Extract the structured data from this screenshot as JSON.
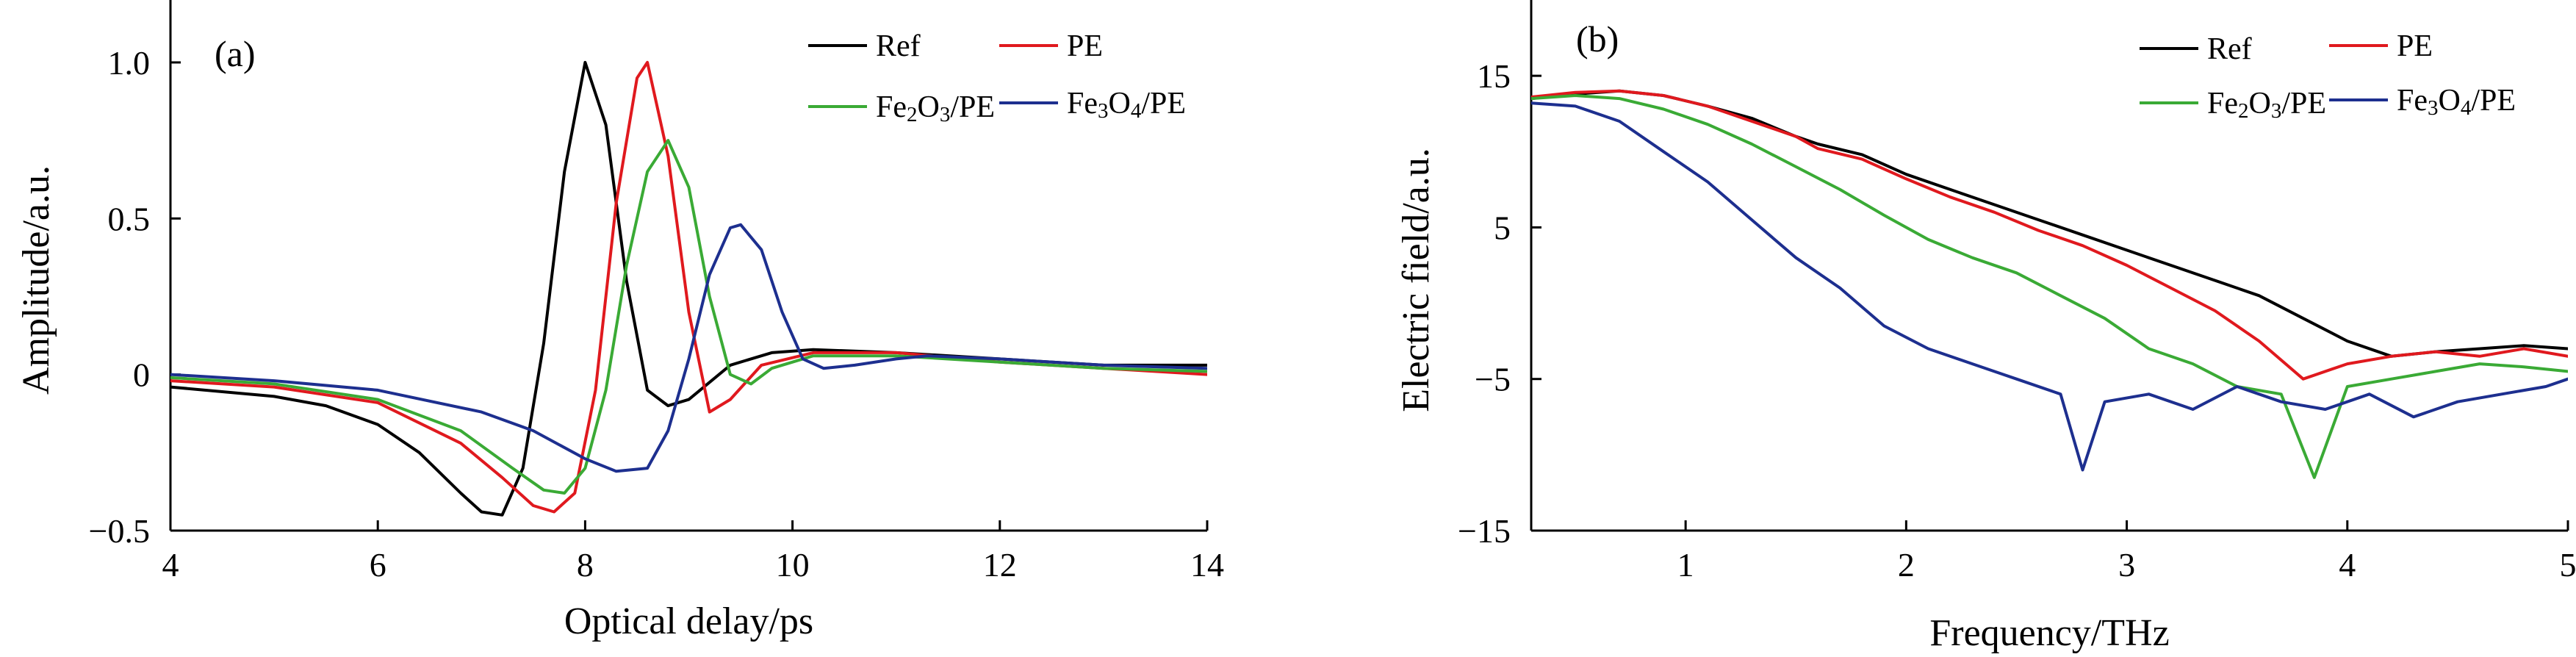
{
  "chart_data": [
    {
      "type": "line",
      "panel_label": "(a)",
      "xlabel": "Optical delay/ps",
      "ylabel": "Amplitude/a.u.",
      "xlim": [
        4,
        14
      ],
      "ylim": [
        -0.5,
        1.2
      ],
      "xticks": [
        4,
        6,
        8,
        10,
        12,
        14
      ],
      "xtick_labels": [
        "4",
        "6",
        "8",
        "10",
        "12",
        "14"
      ],
      "yticks": [
        -0.5,
        0,
        0.5,
        1.0
      ],
      "ytick_labels": [
        "−0.5",
        "0",
        "0.5",
        "1.0"
      ],
      "grid": false,
      "legend_position": "top-right",
      "series": [
        {
          "name": "Ref",
          "color": "#000000",
          "x": [
            4.0,
            5.0,
            5.5,
            6.0,
            6.4,
            6.8,
            7.0,
            7.2,
            7.4,
            7.6,
            7.8,
            8.0,
            8.2,
            8.4,
            8.6,
            8.8,
            9.0,
            9.4,
            9.8,
            10.2,
            11.0,
            12.0,
            13.0,
            14.0
          ],
          "y": [
            -0.04,
            -0.07,
            -0.1,
            -0.16,
            -0.25,
            -0.38,
            -0.44,
            -0.45,
            -0.3,
            0.1,
            0.65,
            1.0,
            0.8,
            0.3,
            -0.05,
            -0.1,
            -0.08,
            0.03,
            0.07,
            0.08,
            0.07,
            0.05,
            0.03,
            0.03
          ]
        },
        {
          "name": "PE",
          "color": "#e0191e",
          "x": [
            4.0,
            5.0,
            6.0,
            6.8,
            7.2,
            7.5,
            7.7,
            7.9,
            8.1,
            8.3,
            8.5,
            8.6,
            8.8,
            9.0,
            9.2,
            9.4,
            9.7,
            10.2,
            11.0,
            12.0,
            13.0,
            14.0
          ],
          "y": [
            -0.02,
            -0.04,
            -0.09,
            -0.22,
            -0.33,
            -0.42,
            -0.44,
            -0.38,
            -0.05,
            0.55,
            0.95,
            1.0,
            0.7,
            0.2,
            -0.12,
            -0.08,
            0.03,
            0.07,
            0.07,
            0.04,
            0.02,
            0.0
          ]
        },
        {
          "name": "Fe2O3/PE",
          "color": "#3aaa35",
          "x": [
            4.0,
            5.0,
            6.0,
            6.8,
            7.3,
            7.6,
            7.8,
            8.0,
            8.2,
            8.4,
            8.6,
            8.8,
            9.0,
            9.2,
            9.4,
            9.6,
            9.8,
            10.2,
            11.0,
            12.0,
            13.0,
            14.0
          ],
          "y": [
            -0.01,
            -0.03,
            -0.08,
            -0.18,
            -0.3,
            -0.37,
            -0.38,
            -0.3,
            -0.05,
            0.35,
            0.65,
            0.75,
            0.6,
            0.25,
            0.0,
            -0.03,
            0.02,
            0.06,
            0.06,
            0.04,
            0.02,
            0.01
          ]
        },
        {
          "name": "Fe3O4/PE",
          "color": "#1d2f8f",
          "x": [
            4.0,
            5.0,
            6.0,
            7.0,
            7.5,
            8.0,
            8.3,
            8.6,
            8.8,
            9.0,
            9.2,
            9.4,
            9.5,
            9.7,
            9.9,
            10.1,
            10.3,
            10.6,
            11.0,
            11.3,
            12.0,
            13.0,
            14.0
          ],
          "y": [
            0.0,
            -0.02,
            -0.05,
            -0.12,
            -0.18,
            -0.27,
            -0.31,
            -0.3,
            -0.18,
            0.05,
            0.32,
            0.47,
            0.48,
            0.4,
            0.2,
            0.05,
            0.02,
            0.03,
            0.05,
            0.06,
            0.05,
            0.03,
            0.02
          ]
        }
      ]
    },
    {
      "type": "line",
      "panel_label": "(b)",
      "xlabel": "Frequency/THz",
      "ylabel": "Electric field/a.u.",
      "xlim": [
        0.3,
        5
      ],
      "ylim": [
        -15,
        20
      ],
      "xticks": [
        1,
        2,
        3,
        4,
        5
      ],
      "xtick_labels": [
        "1",
        "2",
        "3",
        "4",
        "5"
      ],
      "yticks": [
        -15,
        -5,
        5,
        15
      ],
      "ytick_labels": [
        "−15",
        "−5",
        "5",
        "15"
      ],
      "grid": false,
      "legend_position": "top-right",
      "series": [
        {
          "name": "Ref",
          "color": "#000000",
          "x": [
            0.3,
            0.5,
            0.7,
            0.9,
            1.1,
            1.3,
            1.5,
            1.6,
            1.8,
            2.0,
            2.2,
            2.4,
            2.6,
            2.8,
            3.0,
            3.2,
            3.4,
            3.6,
            3.8,
            4.0,
            4.2,
            4.4,
            4.6,
            4.8,
            5.0
          ],
          "y": [
            13.5,
            13.8,
            14.0,
            13.7,
            13.0,
            12.2,
            11.0,
            10.5,
            9.8,
            8.5,
            7.5,
            6.5,
            5.5,
            4.5,
            3.5,
            2.5,
            1.5,
            0.5,
            -1.0,
            -2.5,
            -3.5,
            -3.2,
            -3.0,
            -2.8,
            -3.0
          ]
        },
        {
          "name": "PE",
          "color": "#e0191e",
          "x": [
            0.3,
            0.5,
            0.7,
            0.9,
            1.1,
            1.3,
            1.5,
            1.6,
            1.8,
            2.0,
            2.2,
            2.4,
            2.6,
            2.8,
            3.0,
            3.2,
            3.4,
            3.6,
            3.8,
            4.0,
            4.2,
            4.4,
            4.6,
            4.8,
            5.0
          ],
          "y": [
            13.6,
            13.9,
            14.0,
            13.7,
            13.0,
            12.0,
            11.0,
            10.2,
            9.5,
            8.2,
            7.0,
            6.0,
            4.8,
            3.8,
            2.5,
            1.0,
            -0.5,
            -2.5,
            -5.0,
            -4.0,
            -3.5,
            -3.2,
            -3.5,
            -3.0,
            -3.5
          ]
        },
        {
          "name": "Fe2O3/PE",
          "color": "#3aaa35",
          "x": [
            0.3,
            0.5,
            0.7,
            0.9,
            1.1,
            1.3,
            1.5,
            1.7,
            1.9,
            2.1,
            2.3,
            2.5,
            2.7,
            2.9,
            3.1,
            3.3,
            3.5,
            3.7,
            3.85,
            4.0,
            4.2,
            4.4,
            4.6,
            4.8,
            5.0
          ],
          "y": [
            13.5,
            13.7,
            13.5,
            12.8,
            11.8,
            10.5,
            9.0,
            7.5,
            5.8,
            4.2,
            3.0,
            2.0,
            0.5,
            -1.0,
            -3.0,
            -4.0,
            -5.5,
            -6.0,
            -11.5,
            -5.5,
            -5.0,
            -4.5,
            -4.0,
            -4.2,
            -4.5
          ]
        },
        {
          "name": "Fe3O4/PE",
          "color": "#1d2f8f",
          "x": [
            0.3,
            0.5,
            0.7,
            0.9,
            1.1,
            1.3,
            1.5,
            1.7,
            1.9,
            2.1,
            2.3,
            2.5,
            2.7,
            2.8,
            2.9,
            3.1,
            3.3,
            3.5,
            3.7,
            3.9,
            4.1,
            4.3,
            4.5,
            4.7,
            4.9,
            5.0
          ],
          "y": [
            13.2,
            13.0,
            12.0,
            10.0,
            8.0,
            5.5,
            3.0,
            1.0,
            -1.5,
            -3.0,
            -4.0,
            -5.0,
            -6.0,
            -11.0,
            -6.5,
            -6.0,
            -7.0,
            -5.5,
            -6.5,
            -7.0,
            -6.0,
            -7.5,
            -6.5,
            -6.0,
            -5.5,
            -5.0
          ]
        }
      ]
    }
  ]
}
